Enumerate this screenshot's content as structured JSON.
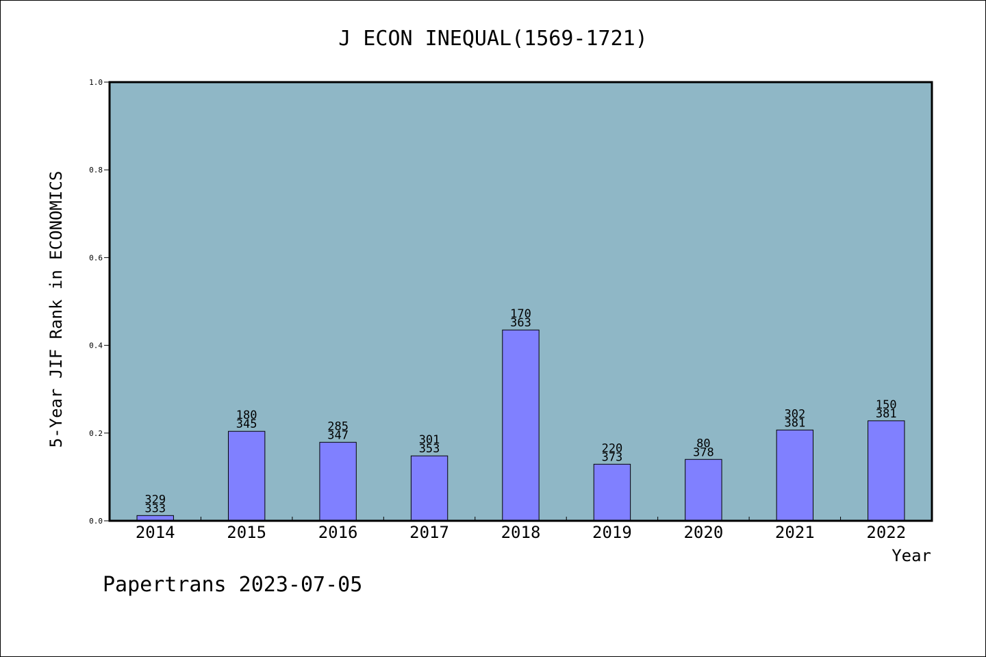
{
  "chart_data": {
    "type": "bar",
    "title": "J ECON INEQUAL(1569-1721)",
    "xlabel": "Year",
    "ylabel": "5-Year JIF Rank in ECONOMICS",
    "ylim": [
      0,
      1.0
    ],
    "yticks": [
      "0.0",
      "0.2",
      "0.4",
      "0.6",
      "0.8",
      "1.0"
    ],
    "categories": [
      "2014",
      "2015",
      "2016",
      "2017",
      "2018",
      "2019",
      "2020",
      "2021",
      "2022"
    ],
    "values": [
      0.012,
      0.204,
      0.179,
      0.148,
      0.435,
      0.129,
      0.14,
      0.207,
      0.228
    ],
    "rank_labels": [
      "329",
      "180",
      "285",
      "301",
      "170",
      "220",
      "80",
      "302",
      "150"
    ],
    "total_labels": [
      "333",
      "345",
      "347",
      "353",
      "363",
      "373",
      "378",
      "381",
      "381"
    ],
    "grid": false,
    "legend": "none",
    "colors": {
      "plot_bg": "#8fb7c6",
      "bar": "#8080ff",
      "axis": "#000000"
    }
  },
  "footer": "Papertrans 2023-07-05"
}
